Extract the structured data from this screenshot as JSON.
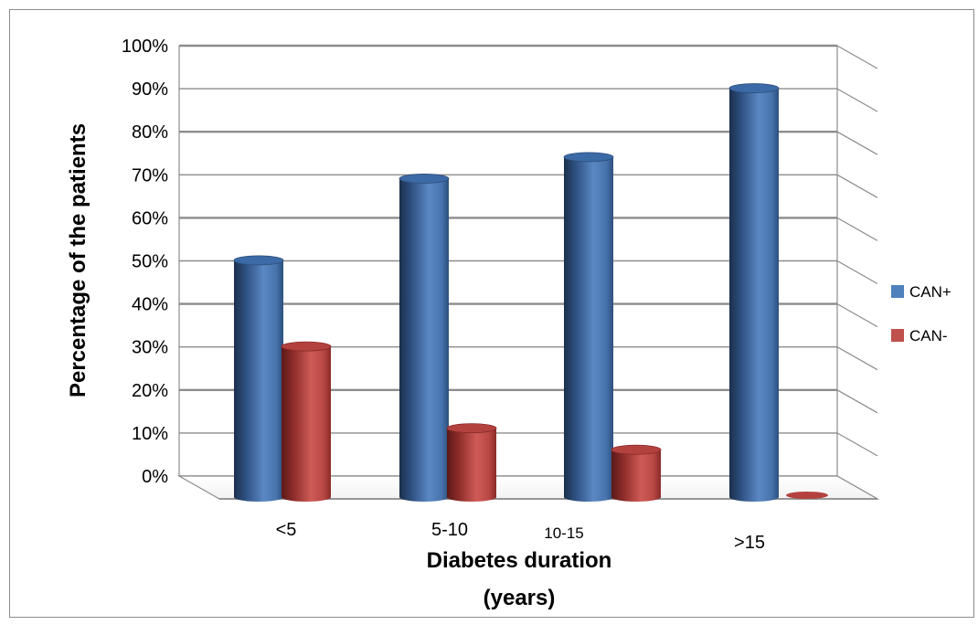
{
  "chart_data": {
    "type": "bar",
    "style": "3d-cylinder",
    "categories": [
      "<5",
      "5-10",
      "10-15",
      ">15"
    ],
    "series": [
      {
        "name": "CAN+",
        "values": [
          55,
          74,
          79,
          95
        ],
        "color": "#4f81bd"
      },
      {
        "name": "CAN-",
        "values": [
          35,
          16,
          11,
          0.5
        ],
        "color": "#c0504d"
      }
    ],
    "xlabel_line1": "Diabetes duration",
    "xlabel_line2": "(years)",
    "ylabel": "Percentage of the patients",
    "ylim": [
      0,
      100
    ],
    "yticks": [
      "0%",
      "10%",
      "20%",
      "30%",
      "40%",
      "50%",
      "60%",
      "70%",
      "80%",
      "90%",
      "100%"
    ],
    "grid": true,
    "legend_position": "right"
  }
}
